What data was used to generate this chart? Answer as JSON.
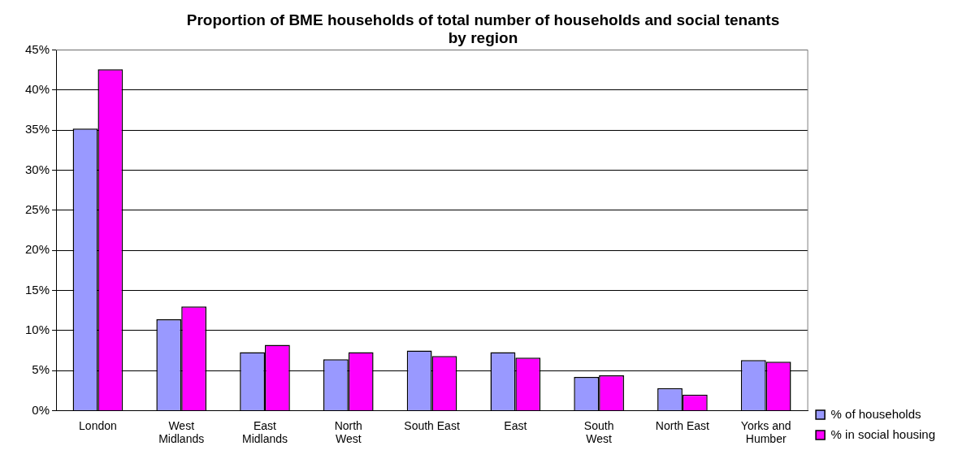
{
  "chart_data": {
    "type": "bar",
    "title": [
      "Proportion of BME households of total number of households and social tenants",
      "by region"
    ],
    "categories": [
      [
        "London"
      ],
      [
        "West",
        "Midlands"
      ],
      [
        "East",
        "Midlands"
      ],
      [
        "North",
        "West"
      ],
      [
        "South East"
      ],
      [
        "East"
      ],
      [
        "South",
        "West"
      ],
      [
        "North East"
      ],
      [
        "Yorks and",
        "Humber"
      ]
    ],
    "series": [
      {
        "name": "% of households",
        "color": "#9999ff",
        "values": [
          35.2,
          11.4,
          7.3,
          6.4,
          7.5,
          7.3,
          4.2,
          2.8,
          6.3
        ]
      },
      {
        "name": "% in social housing",
        "color": "#ff00ff",
        "values": [
          42.6,
          13.0,
          8.2,
          7.3,
          6.8,
          6.6,
          4.4,
          2.0,
          6.1
        ]
      }
    ],
    "ylim": [
      0,
      45
    ],
    "yticks": [
      {
        "value": 0,
        "label": "0%"
      },
      {
        "value": 5,
        "label": "5%"
      },
      {
        "value": 10,
        "label": "10%"
      },
      {
        "value": 15,
        "label": "15%"
      },
      {
        "value": 20,
        "label": "20%"
      },
      {
        "value": 25,
        "label": "25%"
      },
      {
        "value": 30,
        "label": "30%"
      },
      {
        "value": 35,
        "label": "35%"
      },
      {
        "value": 40,
        "label": "40%"
      },
      {
        "value": 45,
        "label": "45%"
      }
    ],
    "grid": "y",
    "legend": "bottom right"
  }
}
